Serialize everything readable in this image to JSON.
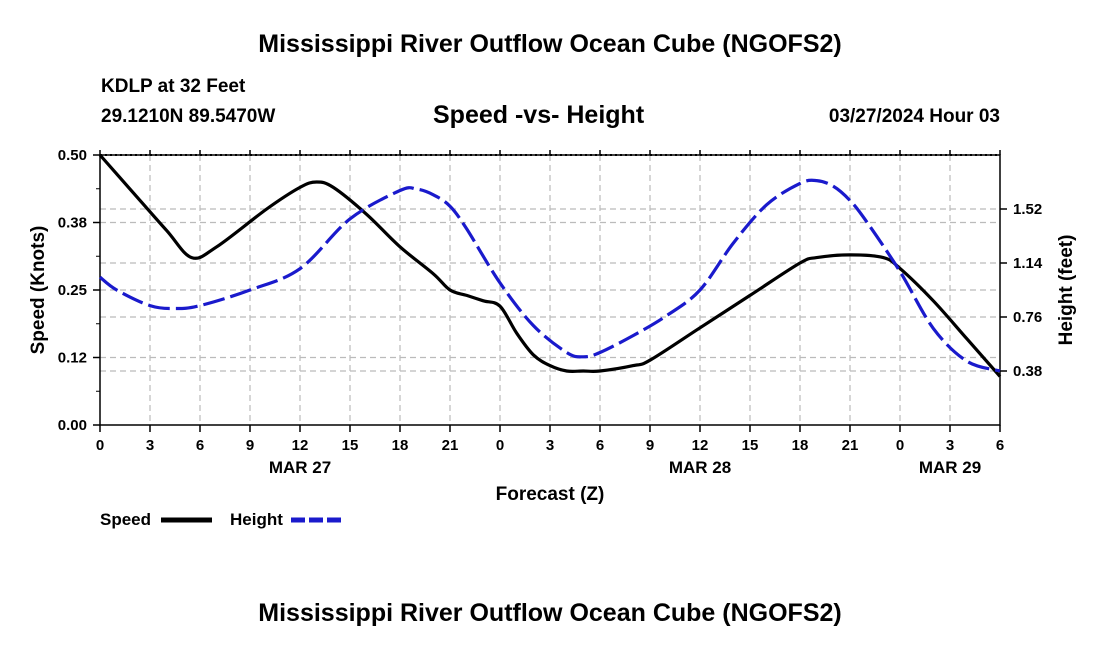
{
  "page": {
    "title": "Mississippi River Outflow Ocean Cube (NGOFS2)",
    "footer_title": "Mississippi River Outflow Ocean Cube (NGOFS2)",
    "station": "KDLP at 32 Feet",
    "coords": "29.1210N  89.5470W",
    "subtitle": "Speed -vs- Height",
    "datetime": "03/27/2024 Hour 03"
  },
  "legend": {
    "speed_label": "Speed",
    "height_label": "Height"
  },
  "colors": {
    "speed": "#000000",
    "height": "#1a1acc",
    "grid": "#bbbbbb"
  },
  "chart_data": {
    "type": "line",
    "title": "Speed -vs- Height",
    "xlabel": "Forecast (Z)",
    "ylabel_left": "Speed (Knots)",
    "ylabel_right": "Height (feet)",
    "x_range_hours": [
      0,
      54
    ],
    "x_ticks": [
      {
        "h": 0,
        "label": "0"
      },
      {
        "h": 3,
        "label": "3"
      },
      {
        "h": 6,
        "label": "6"
      },
      {
        "h": 9,
        "label": "9"
      },
      {
        "h": 12,
        "label": "12"
      },
      {
        "h": 15,
        "label": "15"
      },
      {
        "h": 18,
        "label": "18"
      },
      {
        "h": 21,
        "label": "21"
      },
      {
        "h": 24,
        "label": "0"
      },
      {
        "h": 27,
        "label": "3"
      },
      {
        "h": 30,
        "label": "6"
      },
      {
        "h": 33,
        "label": "9"
      },
      {
        "h": 36,
        "label": "12"
      },
      {
        "h": 39,
        "label": "15"
      },
      {
        "h": 42,
        "label": "18"
      },
      {
        "h": 45,
        "label": "21"
      },
      {
        "h": 48,
        "label": "0"
      },
      {
        "h": 51,
        "label": "3"
      },
      {
        "h": 54,
        "label": "6"
      }
    ],
    "date_labels": [
      {
        "h": 12,
        "label": "MAR 27"
      },
      {
        "h": 36,
        "label": "MAR 28"
      },
      {
        "h": 51,
        "label": "MAR 29"
      }
    ],
    "ylim_left": [
      0,
      0.5
    ],
    "yticks_left": [
      {
        "v": 0.0,
        "label": "0.00"
      },
      {
        "v": 0.125,
        "label": "0.12"
      },
      {
        "v": 0.25,
        "label": "0.25"
      },
      {
        "v": 0.375,
        "label": "0.38"
      },
      {
        "v": 0.5,
        "label": "0.50"
      }
    ],
    "ylim_right": [
      0,
      1.9
    ],
    "yticks_right": [
      {
        "v": 0.38,
        "label": "0.38"
      },
      {
        "v": 0.76,
        "label": "0.76"
      },
      {
        "v": 1.14,
        "label": "1.14"
      },
      {
        "v": 1.52,
        "label": "1.52"
      }
    ],
    "series": [
      {
        "name": "Speed",
        "axis": "left",
        "style": "solid",
        "x": [
          0,
          2,
          4,
          5.5,
          7,
          10,
          12,
          13,
          14,
          16,
          18,
          20,
          21,
          22,
          23,
          24,
          25,
          26,
          27,
          28,
          29,
          30,
          32,
          33,
          36,
          39,
          42,
          43,
          45,
          47,
          48,
          50,
          52,
          54
        ],
        "y": [
          0.5,
          0.43,
          0.36,
          0.31,
          0.33,
          0.4,
          0.44,
          0.45,
          0.44,
          0.39,
          0.33,
          0.28,
          0.25,
          0.24,
          0.23,
          0.22,
          0.17,
          0.13,
          0.11,
          0.1,
          0.1,
          0.1,
          0.11,
          0.12,
          0.18,
          0.24,
          0.3,
          0.31,
          0.315,
          0.31,
          0.29,
          0.23,
          0.16,
          0.09
        ]
      },
      {
        "name": "Height",
        "axis": "right",
        "style": "dashed",
        "x": [
          0,
          1,
          3,
          4.5,
          6,
          9,
          12,
          15,
          18,
          19,
          20,
          21,
          22,
          24,
          26,
          28,
          29,
          30,
          32,
          34,
          36,
          38,
          40,
          42,
          43,
          44,
          45,
          46,
          48,
          50,
          52,
          54
        ],
        "y": [
          1.04,
          0.95,
          0.84,
          0.82,
          0.84,
          0.95,
          1.1,
          1.45,
          1.65,
          1.66,
          1.62,
          1.54,
          1.38,
          1.0,
          0.7,
          0.51,
          0.48,
          0.51,
          0.63,
          0.77,
          0.95,
          1.28,
          1.55,
          1.7,
          1.72,
          1.68,
          1.58,
          1.43,
          1.08,
          0.68,
          0.45,
          0.38
        ]
      }
    ]
  }
}
